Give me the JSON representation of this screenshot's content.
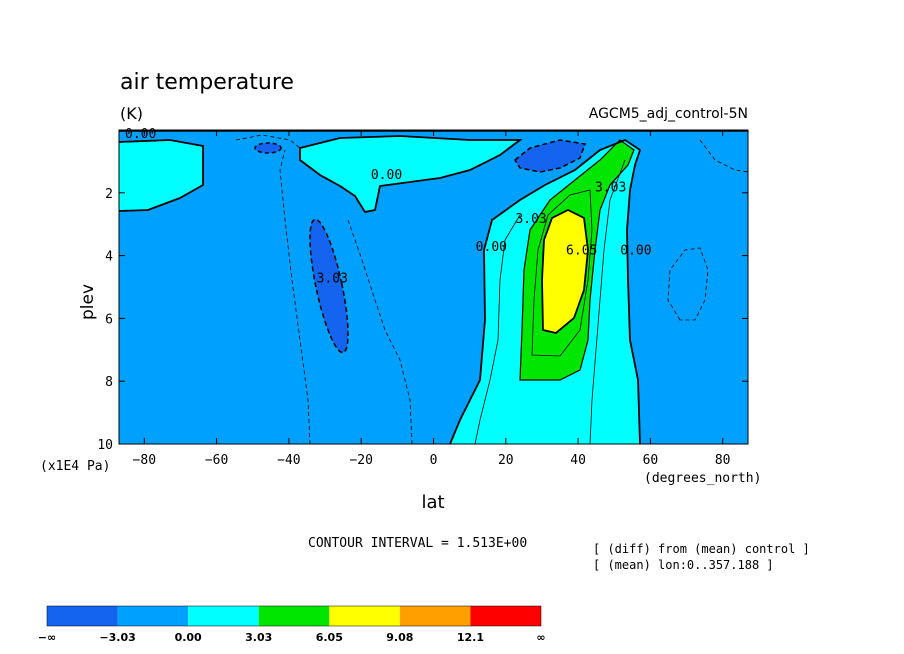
{
  "chart_data": {
    "type": "contour",
    "title": "air temperature",
    "units": "(K)",
    "experiment": "AGCM5_adj_control-5N",
    "xlabel": "lat",
    "x_units": "(degrees_north)",
    "ylabel": "plev",
    "y_units": "(x1E4 Pa)",
    "xlim": [
      -87,
      87
    ],
    "ylim": [
      10,
      0
    ],
    "x_ticks": [
      -80,
      -60,
      -40,
      -20,
      0,
      20,
      40,
      60,
      80
    ],
    "x_tick_labels": [
      "−80",
      "−60",
      "−40",
      "−20",
      "0",
      "20",
      "40",
      "60",
      "80"
    ],
    "y_ticks": [
      2,
      4,
      6,
      8,
      10
    ],
    "y_tick_labels": [
      "2",
      "4",
      "6",
      "8",
      "10"
    ],
    "contour_interval_text": "CONTOUR INTERVAL = 1.513E+00",
    "notes": [
      "[ (diff) from (mean) control ]",
      "[ (mean) lon:0..357.188 ]"
    ],
    "levels": [
      -3.03,
      0.0,
      3.03,
      6.05,
      9.08,
      12.1
    ],
    "colorbar": {
      "labels": [
        "−∞",
        "−3.03",
        "0.00",
        "3.03",
        "6.05",
        "9.08",
        "12.1",
        "∞"
      ],
      "colors": [
        "#1464f0",
        "#00a0ff",
        "#00ffff",
        "#00e600",
        "#ffff00",
        "#ffa000",
        "#ff0000"
      ]
    },
    "contour_labels": [
      {
        "text": "0.00",
        "lat": -81,
        "plev": 0.1
      },
      {
        "text": "0.00",
        "lat": -13,
        "plev": 1.4
      },
      {
        "text": "3.03",
        "lat": -28,
        "plev": 4.7
      },
      {
        "text": "0.00",
        "lat": 16,
        "plev": 3.7
      },
      {
        "text": "3.03",
        "lat": 27,
        "plev": 2.8
      },
      {
        "text": "6.05",
        "lat": 41,
        "plev": 3.8
      },
      {
        "text": "3.03",
        "lat": 49,
        "plev": 1.8
      },
      {
        "text": "0.00",
        "lat": 56,
        "plev": 3.8
      }
    ]
  }
}
